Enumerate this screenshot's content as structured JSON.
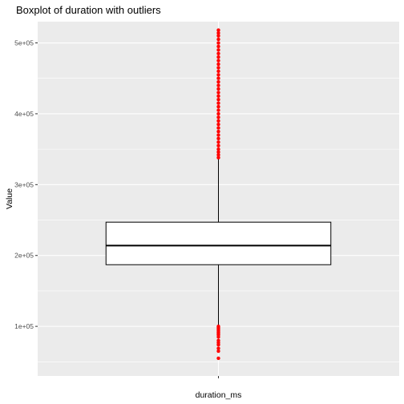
{
  "chart_data": {
    "type": "boxplot",
    "title": "Boxplot of duration with outliers",
    "xlabel": "",
    "ylabel": "Value",
    "categories": [
      "duration_ms"
    ],
    "ylim": [
      30000,
      530000
    ],
    "yticks": [
      100000,
      200000,
      300000,
      400000,
      500000
    ],
    "ytick_labels": [
      "1e+05",
      "2e+05",
      "3e+05",
      "4e+05",
      "5e+05"
    ],
    "grid": true,
    "box": {
      "whisker_low": 101000,
      "q1": 187000,
      "median": 214000,
      "q3": 247000,
      "whisker_high": 337000
    },
    "outliers_low": [
      100000,
      98000,
      96000,
      94000,
      92000,
      90000,
      88000,
      85000,
      80000,
      77000,
      74000,
      69000,
      65000,
      55000
    ],
    "outliers_high": [
      338000,
      342000,
      346000,
      350000,
      355000,
      360000,
      365000,
      370000,
      375000,
      380000,
      385000,
      390000,
      395000,
      400000,
      405000,
      410000,
      415000,
      420000,
      425000,
      430000,
      435000,
      440000,
      445000,
      450000,
      455000,
      460000,
      465000,
      470000,
      475000,
      480000,
      485000,
      490000,
      495000,
      500000,
      505000,
      510000,
      514000,
      518000
    ],
    "colors": {
      "panel": "#ebebeb",
      "grid": "#ffffff",
      "outlier": "#ff0000",
      "box_fill": "#ffffff",
      "box_line": "#000000"
    }
  }
}
